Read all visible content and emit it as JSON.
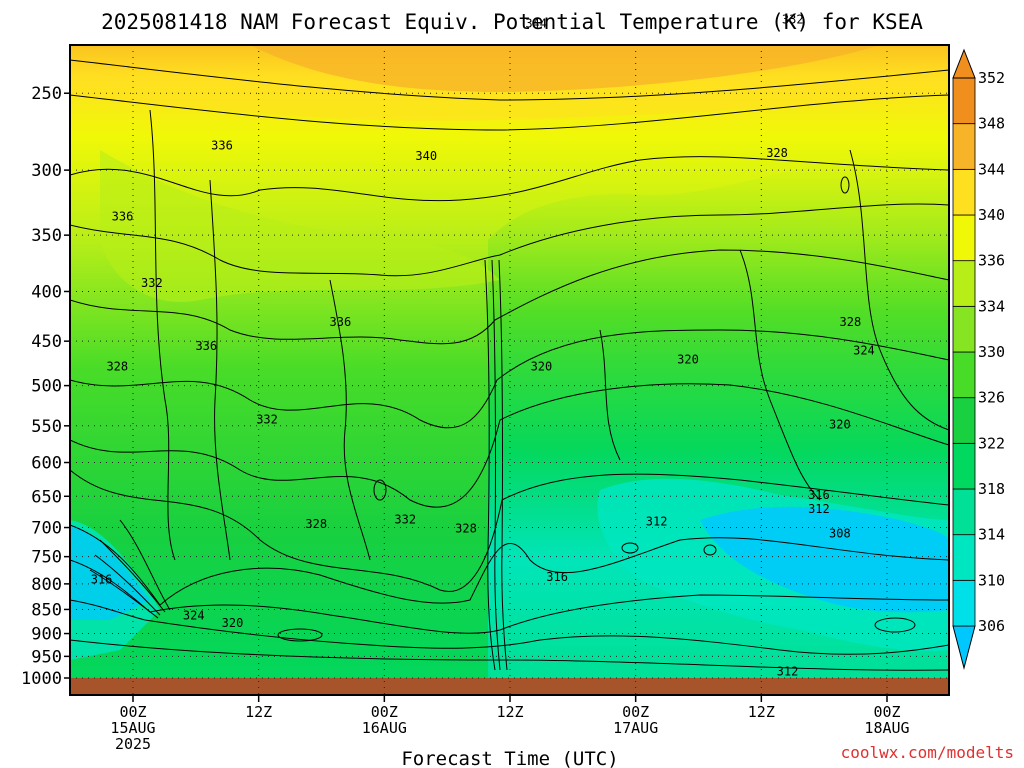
{
  "chart_data": {
    "type": "heatmap",
    "title": "2025081418 NAM Forecast Equiv. Potential Temperature (K) for KSEA",
    "xlabel": "Forecast Time (UTC)",
    "ylabel": "",
    "y_scale": "log",
    "y_ticks": [
      250,
      300,
      350,
      400,
      450,
      500,
      550,
      600,
      650,
      700,
      750,
      800,
      850,
      900,
      950,
      1000
    ],
    "x_ticks": [
      {
        "hour": 0,
        "label": [
          "00Z",
          "15AUG",
          "2025"
        ]
      },
      {
        "hour": 12,
        "label": [
          "12Z"
        ]
      },
      {
        "hour": 24,
        "label": [
          "00Z",
          "16AUG"
        ]
      },
      {
        "hour": 36,
        "label": [
          "12Z"
        ]
      },
      {
        "hour": 48,
        "label": [
          "00Z",
          "17AUG"
        ]
      },
      {
        "hour": 60,
        "label": [
          "12Z"
        ]
      },
      {
        "hour": 72,
        "label": [
          "00Z",
          "18AUG"
        ]
      }
    ],
    "colorbar": {
      "levels": [
        306,
        310,
        314,
        318,
        322,
        326,
        330,
        334,
        336,
        340,
        344,
        348,
        352
      ],
      "colors": [
        "#00c8ff",
        "#00e0e8",
        "#00e6c0",
        "#00e096",
        "#00d860",
        "#18d040",
        "#48dc28",
        "#86e422",
        "#b8ee18",
        "#f0f808",
        "#ffe020",
        "#f8b428",
        "#f08e1e"
      ]
    },
    "contour_labels": [
      {
        "hour": 38.5,
        "p": 212,
        "text": "344"
      },
      {
        "hour": 63,
        "p": 210,
        "text": "332"
      },
      {
        "hour": 8.5,
        "p": 283,
        "text": "336"
      },
      {
        "hour": 28,
        "p": 290,
        "text": "340"
      },
      {
        "hour": 61.5,
        "p": 288,
        "text": "328"
      },
      {
        "hour": -1,
        "p": 335,
        "text": "336"
      },
      {
        "hour": 1.8,
        "p": 392,
        "text": "332"
      },
      {
        "hour": 19.8,
        "p": 430,
        "text": "336"
      },
      {
        "hour": 68.5,
        "p": 430,
        "text": "328"
      },
      {
        "hour": 7,
        "p": 455,
        "text": "336"
      },
      {
        "hour": 69.8,
        "p": 460,
        "text": "324"
      },
      {
        "hour": -1.5,
        "p": 478,
        "text": "328"
      },
      {
        "hour": 39,
        "p": 478,
        "text": "320"
      },
      {
        "hour": 53,
        "p": 470,
        "text": "320"
      },
      {
        "hour": 67.5,
        "p": 548,
        "text": "320"
      },
      {
        "hour": 12.8,
        "p": 542,
        "text": "332"
      },
      {
        "hour": 65.5,
        "p": 648,
        "text": "316"
      },
      {
        "hour": 65.5,
        "p": 670,
        "text": "312"
      },
      {
        "hour": 26,
        "p": 687,
        "text": "332"
      },
      {
        "hour": 17.5,
        "p": 694,
        "text": "328"
      },
      {
        "hour": 31.8,
        "p": 702,
        "text": "328"
      },
      {
        "hour": 50,
        "p": 690,
        "text": "312"
      },
      {
        "hour": 67.5,
        "p": 710,
        "text": "308"
      },
      {
        "hour": 40.5,
        "p": 787,
        "text": "316"
      },
      {
        "hour": -3,
        "p": 792,
        "text": "316"
      },
      {
        "hour": 5.8,
        "p": 862,
        "text": "324"
      },
      {
        "hour": 9.5,
        "p": 878,
        "text": "320"
      },
      {
        "hour": 62.5,
        "p": 985,
        "text": "312"
      }
    ]
  },
  "credit": "coolwx.com/modelts"
}
